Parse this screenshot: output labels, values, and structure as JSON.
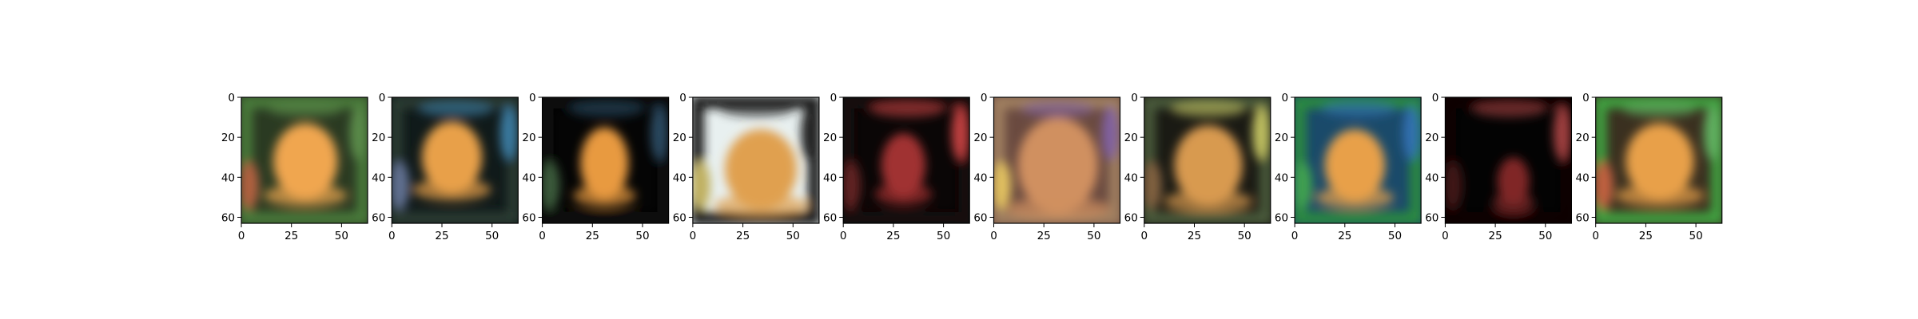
{
  "figure": {
    "background": "#ffffff"
  },
  "chart_data": {
    "type": "heatmap",
    "description_kind": "image_grid",
    "panel_count": 10,
    "image_size": [
      64,
      64
    ],
    "xlim": [
      0,
      63
    ],
    "ylim": [
      63,
      0
    ],
    "xticks": [
      0,
      25,
      50
    ],
    "yticks": [
      0,
      20,
      40,
      60
    ],
    "x_tick_labels": [
      "0",
      "25",
      "50"
    ],
    "y_tick_labels": [
      "0",
      "20",
      "40",
      "60"
    ],
    "panels": [
      {
        "bg": "#2a3a22",
        "frame": "#4a7a3a",
        "blob": "#f0a650",
        "accent": "#5a8a4a",
        "accent2": "#b06040",
        "blob_cx": 32,
        "blob_cy": 32,
        "blob_rx": 16,
        "blob_ry": 19
      },
      {
        "bg": "#101a1a",
        "frame": "#2a3a30",
        "blob": "#e8a048",
        "accent": "#3a7aa0",
        "accent2": "#607090",
        "blob_cx": 30,
        "blob_cy": 30,
        "blob_rx": 15,
        "blob_ry": 18
      },
      {
        "bg": "#050505",
        "frame": "#0a0a0a",
        "blob": "#e89a40",
        "accent": "#2a4a60",
        "accent2": "#3a5a3a",
        "blob_cx": 31,
        "blob_cy": 33,
        "blob_rx": 12,
        "blob_ry": 18
      },
      {
        "bg": "#e8f0f0",
        "frame": "#1a1a1a",
        "blob": "#e0a050",
        "accent": "#202020",
        "accent2": "#c0b060",
        "blob_cx": 34,
        "blob_cy": 36,
        "blob_rx": 18,
        "blob_ry": 20
      },
      {
        "bg": "#0a0606",
        "frame": "#140808",
        "blob": "#a03030",
        "accent": "#c04040",
        "accent2": "#602020",
        "blob_cx": 30,
        "blob_cy": 34,
        "blob_rx": 11,
        "blob_ry": 16
      },
      {
        "bg": "#6a4a40",
        "frame": "#a08060",
        "blob": "#d09060",
        "accent": "#8060a0",
        "accent2": "#e0c060",
        "blob_cx": 32,
        "blob_cy": 34,
        "blob_rx": 20,
        "blob_ry": 24
      },
      {
        "bg": "#1a1a14",
        "frame": "#4a5a3a",
        "blob": "#d89a50",
        "accent": "#c0c060",
        "accent2": "#806040",
        "blob_cx": 32,
        "blob_cy": 34,
        "blob_rx": 17,
        "blob_ry": 20
      },
      {
        "bg": "#1a4a6a",
        "frame": "#2a8a40",
        "blob": "#e8a048",
        "accent": "#3070b0",
        "accent2": "#40a050",
        "blob_cx": 30,
        "blob_cy": 34,
        "blob_rx": 15,
        "blob_ry": 18
      },
      {
        "bg": "#030303",
        "frame": "#080404",
        "blob": "#802828",
        "accent": "#a04040",
        "accent2": "#401818",
        "blob_cx": 34,
        "blob_cy": 42,
        "blob_rx": 8,
        "blob_ry": 12
      },
      {
        "bg": "#3a3020",
        "frame": "#40a040",
        "blob": "#e8a048",
        "accent": "#60b060",
        "accent2": "#c06040",
        "blob_cx": 32,
        "blob_cy": 32,
        "blob_rx": 17,
        "blob_ry": 19
      }
    ]
  }
}
